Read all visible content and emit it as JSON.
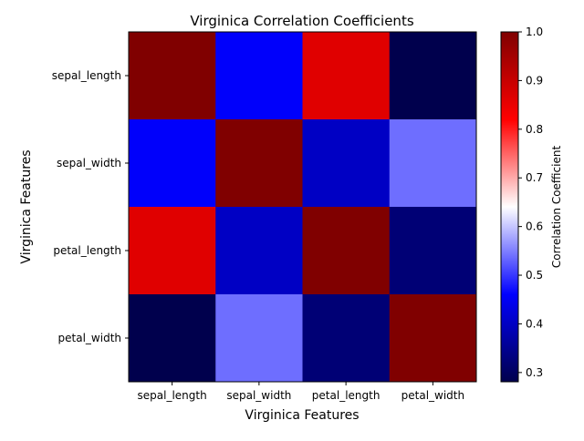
{
  "chart_data": {
    "type": "heatmap",
    "title": "Virginica Correlation Coefficients",
    "xlabel": "Virginica Features",
    "ylabel": "Virginica Features",
    "x_categories": [
      "sepal_length",
      "sepal_width",
      "petal_length",
      "petal_width"
    ],
    "y_categories": [
      "sepal_length",
      "sepal_width",
      "petal_length",
      "petal_width"
    ],
    "matrix": [
      [
        1.0,
        0.457,
        0.864,
        0.281
      ],
      [
        0.457,
        1.0,
        0.401,
        0.538
      ],
      [
        0.864,
        0.401,
        1.0,
        0.322
      ],
      [
        0.281,
        0.538,
        0.322,
        1.0
      ]
    ],
    "colormap": "seismic",
    "colorbar": {
      "label": "Correlation Coefficient",
      "min": 0.281,
      "max": 1.0,
      "ticks": [
        0.3,
        0.4,
        0.5,
        0.6,
        0.7,
        0.8,
        0.9,
        1.0
      ],
      "tick_labels": [
        "0.3",
        "0.4",
        "0.5",
        "0.6",
        "0.7",
        "0.8",
        "0.9",
        "1.0"
      ]
    },
    "grid": false,
    "legend": "colorbar-right"
  }
}
